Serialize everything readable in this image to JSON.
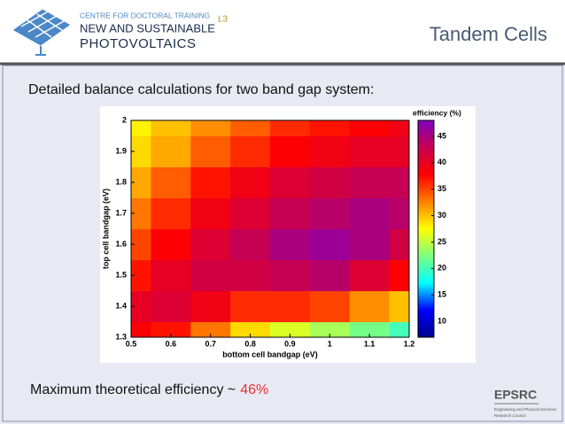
{
  "header": {
    "logo_line1": "CENTRE FOR DOCTORAL TRAINING",
    "logo_line2": "NEW AND SUSTAINABLE",
    "logo_line3": "PHOTOVOLTAICS",
    "lecture": "L3",
    "title": "Tandem Cells"
  },
  "intro": "Detailed balance calculations for two band gap system:",
  "conclusion": {
    "text": "Maximum theoretical efficiency ~",
    "highlight": "46%"
  },
  "funder": {
    "name": "EPSRC",
    "line1": "Engineering and Physical Sciences",
    "line2": "Research Council"
  },
  "chart_data": {
    "type": "heatmap",
    "x_label": "bottom cell bandgap (eV)",
    "y_label": "top cell bandgap (eV)",
    "colorbar_label": "efficiency (%)",
    "x": [
      0.5,
      0.6,
      0.7,
      0.8,
      0.9,
      1.0,
      1.1,
      1.2
    ],
    "y": [
      1.3,
      1.4,
      1.5,
      1.6,
      1.7,
      1.8,
      1.9,
      2.0
    ],
    "z": [
      [
        38,
        37,
        33,
        29,
        26,
        24,
        22,
        20
      ],
      [
        40,
        41,
        39,
        36,
        36,
        35,
        32,
        30
      ],
      [
        37,
        40,
        42,
        42,
        43,
        44,
        41,
        38
      ],
      [
        35,
        38,
        41,
        43,
        45,
        46,
        45,
        42
      ],
      [
        33,
        36,
        39,
        41,
        43,
        44,
        45,
        44
      ],
      [
        31,
        34,
        37,
        39,
        41,
        42,
        43,
        43
      ],
      [
        29,
        31,
        34,
        36,
        38,
        39,
        40,
        40
      ],
      [
        28,
        30,
        32,
        34,
        36,
        37,
        38,
        39
      ]
    ],
    "xlim": [
      0.5,
      1.2
    ],
    "ylim": [
      1.3,
      2
    ],
    "clim": [
      7,
      48
    ],
    "xticks": [
      0.5,
      0.6,
      0.7,
      0.8,
      0.9,
      1,
      1.1,
      1.2
    ],
    "yticks": [
      1.3,
      1.4,
      1.5,
      1.6,
      1.7,
      1.8,
      1.9,
      2
    ],
    "cticks": [
      10,
      15,
      20,
      25,
      30,
      35,
      40,
      45
    ],
    "colormap": [
      "#00008f",
      "#0000ff",
      "#00ffff",
      "#7fff7f",
      "#ffff00",
      "#ff7f00",
      "#ff0000",
      "#c80050",
      "#8000c0"
    ]
  }
}
